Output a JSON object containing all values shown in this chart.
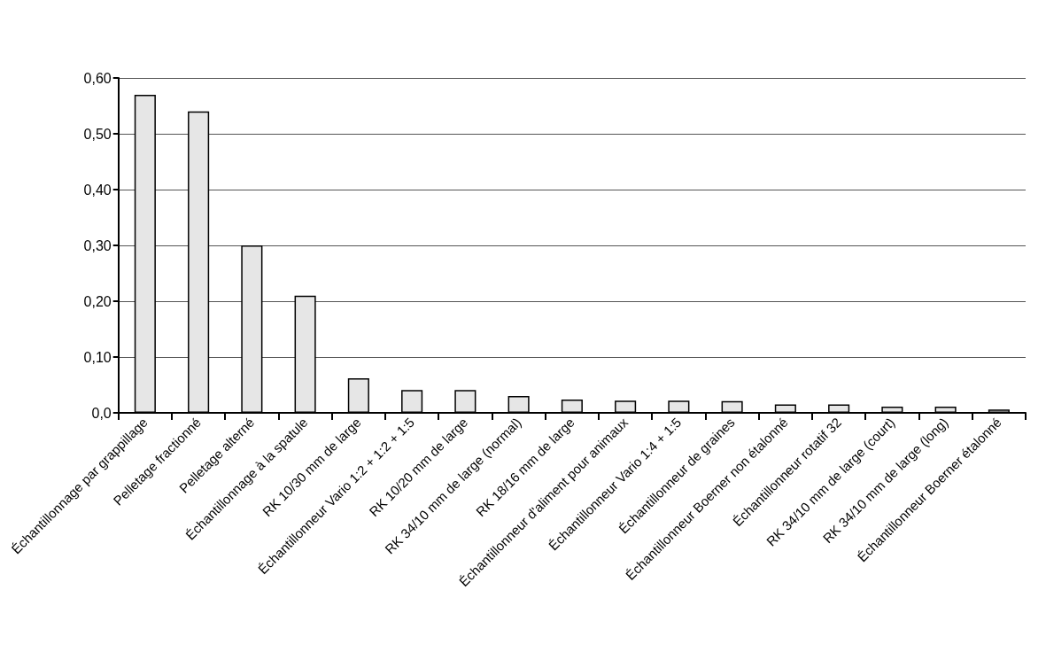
{
  "chart_data": {
    "type": "bar",
    "categories": [
      "Échantillonnage par grappillage",
      "Pelletage fractionné",
      "Pelletage alterné",
      "Échantillonnage à la spatule",
      "RK 10/30 mm de large",
      "Échantillonneur Vario 1:2 + 1:2 + 1:5",
      "RK 10/20 mm de large",
      "RK 34/10 mm de large (normal)",
      "RK 18/16 mm de large",
      "Échantillonneur d'aliment pour animaux",
      "Échantillonneur Vario 1:4 + 1:5",
      "Échantillonneur de graines",
      "Échantillonneur Boerner non étalonné",
      "Échantillonneur rotatif 32",
      "RK 34/10 mm de large (court)",
      "RK 34/10 mm de large (long)",
      "Échantillonneur Boerner étalonné"
    ],
    "values": [
      0.57,
      0.54,
      0.3,
      0.21,
      0.062,
      0.041,
      0.041,
      0.03,
      0.024,
      0.022,
      0.022,
      0.021,
      0.015,
      0.015,
      0.011,
      0.011,
      0.006
    ],
    "color": "#e6e6e6",
    "ylim": [
      0,
      0.6
    ],
    "yticks": [
      {
        "value": 0,
        "label": "0,0"
      },
      {
        "value": 0.1,
        "label": "0,10"
      },
      {
        "value": 0.2,
        "label": "0,20"
      },
      {
        "value": 0.3,
        "label": "0,30"
      },
      {
        "value": 0.4,
        "label": "0,40"
      },
      {
        "value": 0.5,
        "label": "0,50"
      },
      {
        "value": 0.6,
        "label": "0,60"
      }
    ],
    "grid": "y"
  }
}
